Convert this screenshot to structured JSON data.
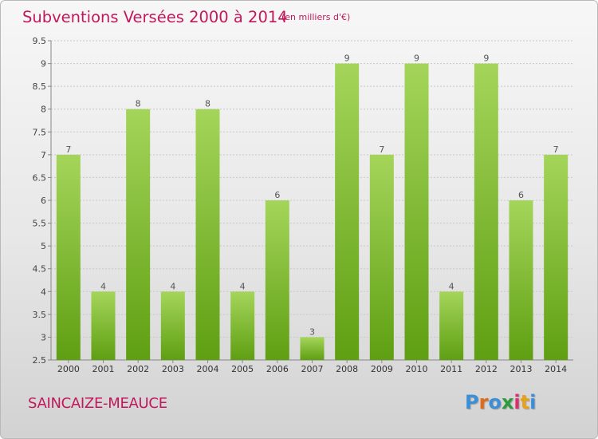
{
  "header": {
    "title": "Subventions Versées 2000 à 2014",
    "unit": "(en milliers d'€)"
  },
  "footer": {
    "commune": "SAINCAIZE-MEAUCE",
    "logo_letters": [
      "P",
      "r",
      "o",
      "x",
      "i",
      "t",
      "i"
    ],
    "logo_colors": [
      "#3a8fd6",
      "#e06a1a",
      "#3a8fd6",
      "#2e9a3e",
      "#d92f6a",
      "#e7a21a",
      "#3a8fd6"
    ]
  },
  "colors": {
    "bar_top": "#a4d55a",
    "bar_bottom": "#5f9f12",
    "title": "#c2185b"
  },
  "chart_data": {
    "type": "bar",
    "categories": [
      "2000",
      "2001",
      "2002",
      "2003",
      "2004",
      "2005",
      "2006",
      "2007",
      "2008",
      "2009",
      "2010",
      "2011",
      "2012",
      "2013",
      "2014"
    ],
    "values": [
      7,
      4,
      8,
      4,
      8,
      4,
      6,
      3,
      9,
      7,
      9,
      4,
      9,
      6,
      7
    ],
    "data_labels": [
      "7",
      "4",
      "8",
      "4",
      "8",
      "4",
      "6",
      "3",
      "9",
      "7",
      "9",
      "4",
      "9",
      "6",
      "7"
    ],
    "yticks": [
      "2.5",
      "3",
      "3.5",
      "4",
      "4.5",
      "5",
      "5.5",
      "6",
      "6.5",
      "7",
      "7.5",
      "8",
      "8.5",
      "9",
      "9.5"
    ],
    "ylim": [
      2.5,
      9.5
    ],
    "grid": true,
    "legend": "none"
  }
}
